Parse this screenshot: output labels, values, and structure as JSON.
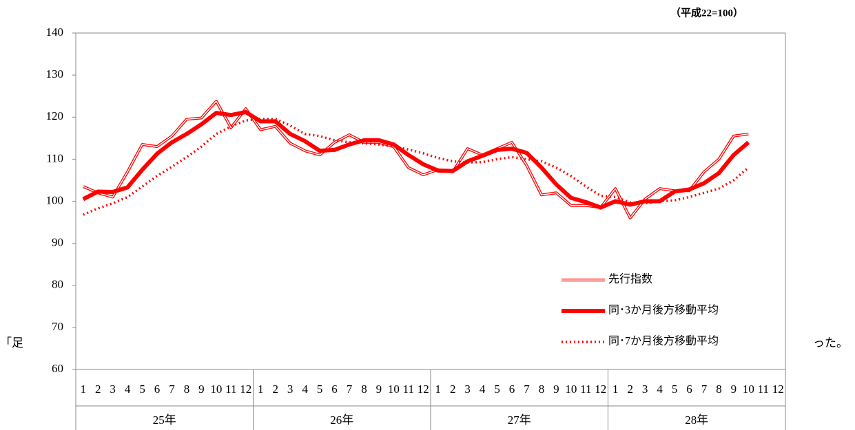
{
  "chart_data": {
    "type": "line",
    "unit_label": "（平成22=100）",
    "categories": [
      "1",
      "2",
      "3",
      "4",
      "5",
      "6",
      "7",
      "8",
      "9",
      "10",
      "11",
      "12",
      "1",
      "2",
      "3",
      "4",
      "5",
      "6",
      "7",
      "8",
      "9",
      "10",
      "11",
      "12",
      "1",
      "2",
      "3",
      "4",
      "5",
      "6",
      "7",
      "8",
      "9",
      "10",
      "11",
      "12",
      "1",
      "2",
      "3",
      "4",
      "5",
      "6",
      "7",
      "8",
      "9",
      "10",
      "11",
      "12"
    ],
    "year_groups": [
      "25年",
      "26年",
      "27年",
      "28年"
    ],
    "series": [
      {
        "name": "先行指数",
        "color": "#ff0000",
        "style": "double",
        "values": [
          103.5,
          102,
          101,
          107,
          113.5,
          113,
          115.5,
          119.5,
          119.8,
          123.8,
          117.5,
          122,
          117,
          117.8,
          113.8,
          112,
          111,
          114,
          115.8,
          114,
          114,
          113,
          108,
          106.3,
          107.5,
          107,
          112.5,
          111,
          112.5,
          114,
          108.5,
          101.5,
          102,
          99,
          99,
          98.5,
          103,
          96,
          100.5,
          103,
          102.5,
          102.5,
          107,
          110,
          115.5,
          116,
          null,
          null
        ]
      },
      {
        "name": "同･3か月後方移動平均",
        "color": "#ff0000",
        "style": "thick",
        "values": [
          100.5,
          102.3,
          102.2,
          103.3,
          107.5,
          111.3,
          114,
          116,
          118.3,
          121,
          120.5,
          121.2,
          119,
          119,
          116,
          114.3,
          112,
          112.2,
          113.5,
          114.5,
          114.5,
          113.5,
          111,
          108.8,
          107.3,
          107.2,
          109.5,
          110.8,
          112.2,
          112.5,
          111.5,
          108,
          104,
          100.8,
          99.8,
          98.5,
          100,
          99.2,
          100,
          100,
          102.3,
          102.8,
          104.3,
          106.7,
          111,
          114,
          null,
          null
        ]
      },
      {
        "name": "同･7か月後方移動平均",
        "color": "#ff0000",
        "style": "dotted",
        "values": [
          96.8,
          98.3,
          99.5,
          101,
          103.5,
          106,
          108.2,
          110.5,
          113,
          116,
          117.8,
          119.2,
          119.6,
          119.6,
          118,
          116,
          115.5,
          114.5,
          114,
          113.8,
          113.5,
          113,
          112.3,
          111.4,
          110.3,
          109.5,
          109.2,
          109.3,
          110,
          110.5,
          110,
          109.5,
          108,
          106,
          103.5,
          101.3,
          101,
          99.7,
          99.5,
          100,
          100.2,
          101,
          102,
          103,
          105,
          108,
          null,
          null
        ]
      }
    ],
    "ylim": [
      60,
      140
    ],
    "yticks": [
      60,
      70,
      80,
      90,
      100,
      110,
      120,
      130,
      140
    ],
    "grid": false
  },
  "background_text": [
    "「足",
    "った。"
  ]
}
